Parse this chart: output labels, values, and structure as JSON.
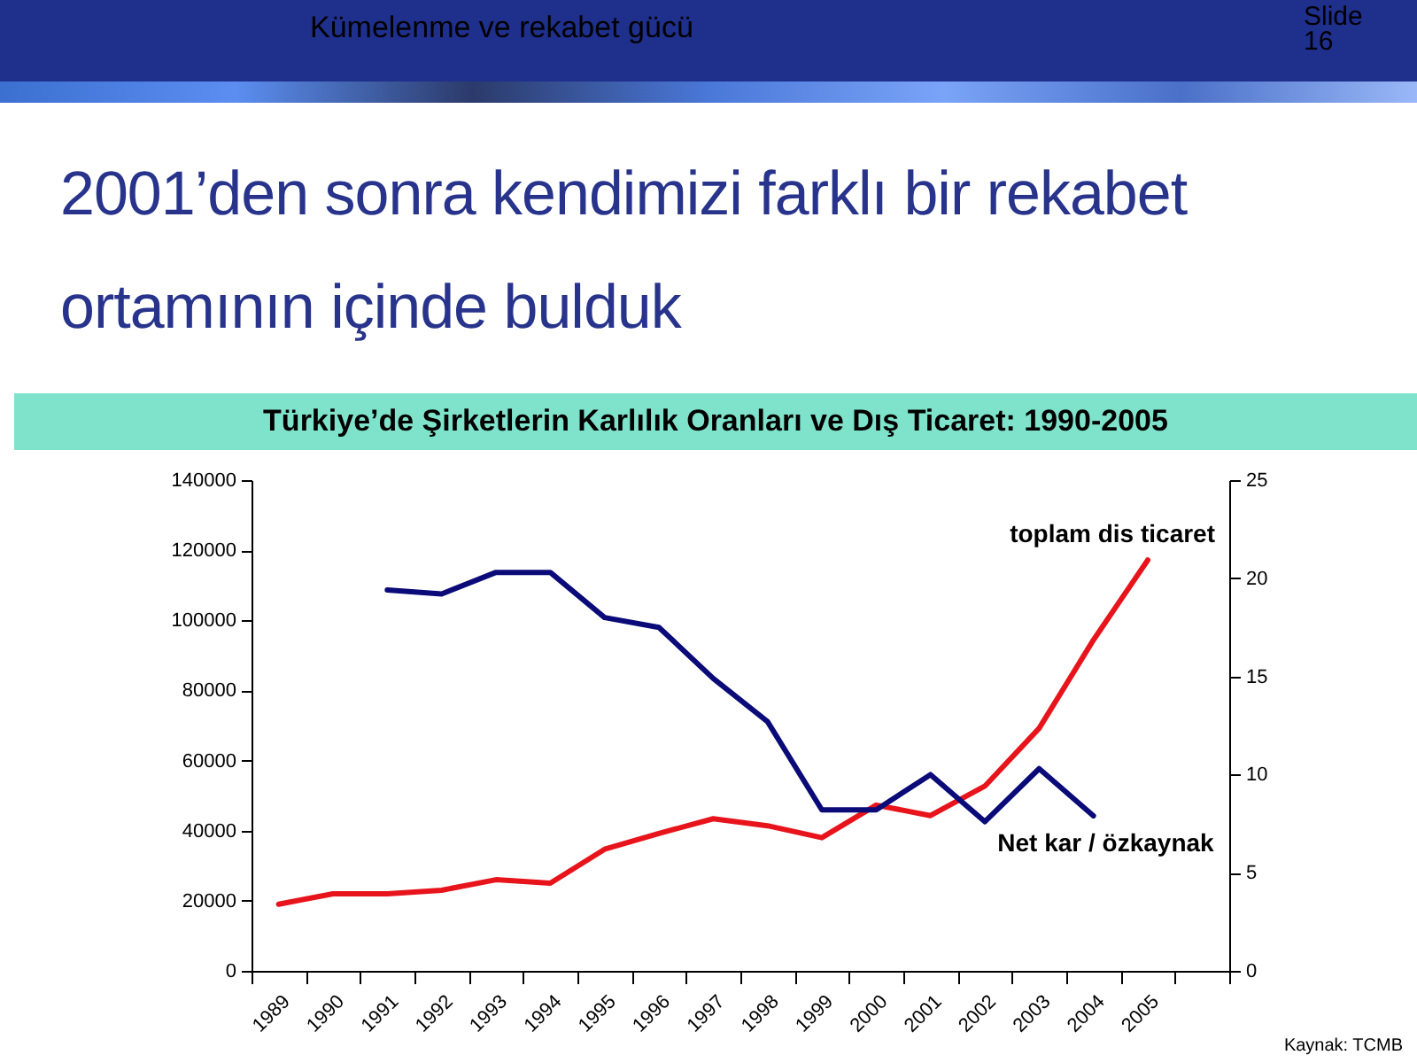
{
  "chart_data": {
    "type": "line",
    "title": "Türkiye’de Şirketlerin Karlılık Oranları ve Dış Ticaret: 1990-2005",
    "subtitle": "2001’den sonra kendimizi farklı bir rekabet ortamının içinde bulduk",
    "annotations": [
      "Kümelenme ve rekabet gücü",
      "Slide 16",
      "Kaynak: TCMB"
    ],
    "categories": [
      "1989",
      "1990",
      "1991",
      "1992",
      "1993",
      "1994",
      "1995",
      "1996",
      "1997",
      "1998",
      "1999",
      "2000",
      "2001",
      "2002",
      "2003",
      "2004",
      "2005",
      null
    ],
    "series": [
      {
        "name": "toplam dis ticaret",
        "color": "#e8141c",
        "values": [
          19000,
          22000,
          22000,
          23000,
          26000,
          25000,
          34700,
          39200,
          43400,
          41400,
          38000,
          47300,
          44300,
          52700,
          69200,
          94400,
          117200,
          null
        ]
      },
      {
        "name": "Net kar / özkaynak",
        "color": "#0a0a78",
        "axis": "y2",
        "values": [
          null,
          null,
          19.4,
          19.2,
          20.3,
          20.3,
          18.0,
          17.5,
          14.9,
          12.7,
          8.2,
          8.2,
          10.0,
          7.6,
          10.3,
          7.9,
          null,
          null
        ]
      }
    ],
    "ylim": [
      0,
      140000
    ],
    "yticks": [
      0,
      20000,
      40000,
      60000,
      80000,
      100000,
      120000,
      140000
    ],
    "y2lim": [
      0,
      25
    ],
    "y2ticks": [
      0,
      5,
      10,
      15,
      20,
      25
    ],
    "grid": false
  }
}
